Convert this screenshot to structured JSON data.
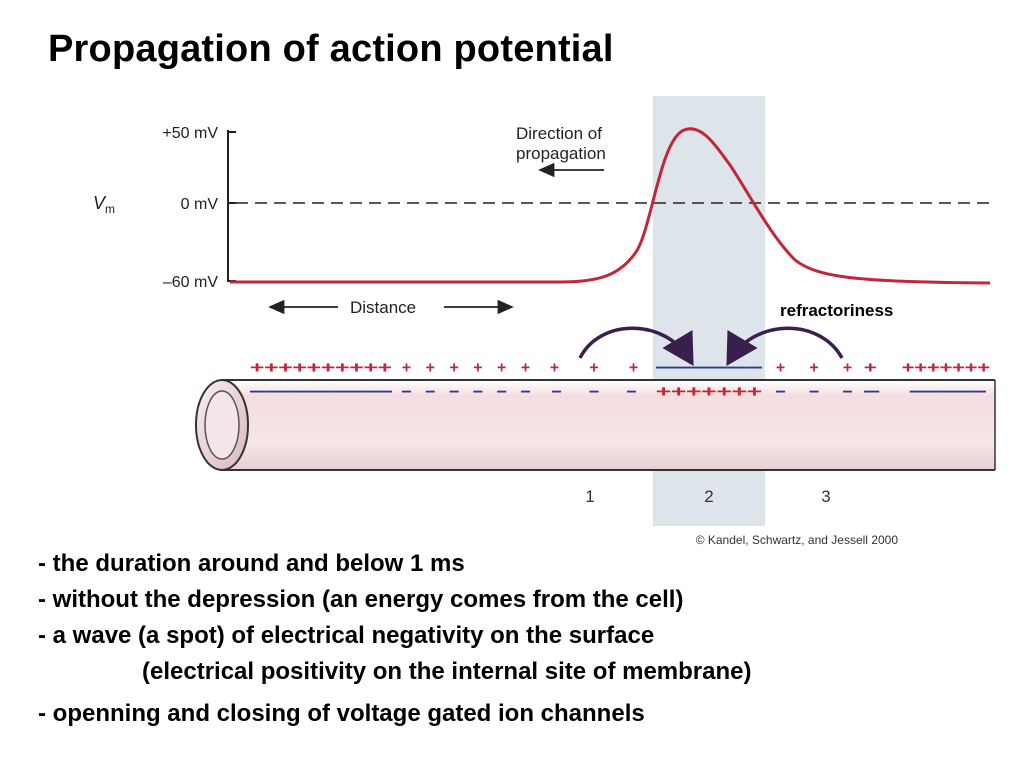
{
  "slide": {
    "title": "Propagation of action potential"
  },
  "figure": {
    "y_axis_label_main": "V",
    "y_axis_label_sub": "m",
    "ticks": {
      "top": "+50 mV",
      "middle": "0 mV",
      "bottom": "–60 mV"
    },
    "direction_line1": "Direction of",
    "direction_line2": "propagation",
    "distance_label": "Distance",
    "refractoriness_label": "refractoriness",
    "region_labels": [
      "1",
      "2",
      "3"
    ],
    "outside_charges": {
      "left_dense": "++++++++++",
      "left_sparse": "+  +  +  +  +  +",
      "region1": "+    +    +",
      "region2": "––––––",
      "region3": "+    +    +",
      "right_dense": "+  +++++++"
    },
    "inside_charges": {
      "left_dense": "––––––––––",
      "left_sparse": "–  –  –  –  –  –",
      "region1": "–    –    –",
      "region2": "+++++++",
      "region3": "–    –    –",
      "right_dense": "–  –––––"
    },
    "copyright": "© Kandel, Schwartz, and Jessell 2000",
    "colors": {
      "curve": "#c0283a",
      "positive": "#c0283a",
      "negative": "#2a3c8c",
      "arrow": "#3a1f4e",
      "highlight": "#dde4ea",
      "axon_body": "#f3dfe1"
    }
  },
  "bullets": [
    "- the duration around and below 1 ms",
    "- without the depression (an energy comes from the cell)",
    "- a wave (a spot) of electrical negativity on the surface",
    "(electrical positivity on the internal site of membrane)",
    "- openning and closing of voltage gated ion channels"
  ]
}
